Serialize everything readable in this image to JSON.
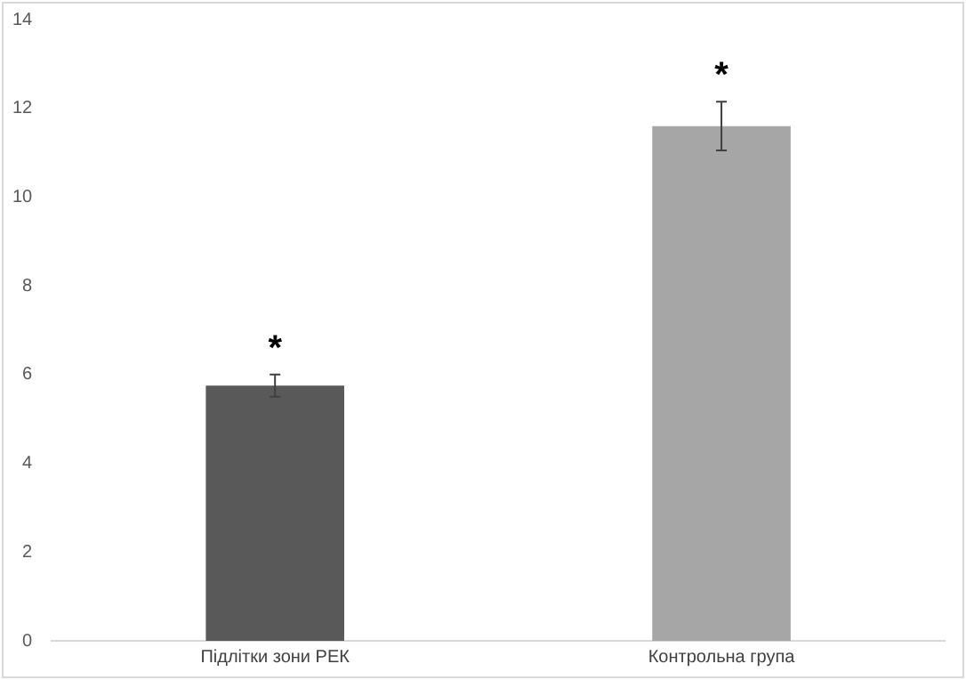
{
  "chart_data": {
    "type": "bar",
    "categories": [
      "Підлітки зони РЕК",
      "Контрольна група"
    ],
    "values": [
      5.75,
      11.6
    ],
    "colors": [
      "#595959",
      "#a6a6a6"
    ],
    "errors": [
      0.25,
      0.55
    ],
    "ylim": [
      0,
      14
    ],
    "yticks": [
      0,
      2,
      4,
      6,
      8,
      10,
      12,
      14
    ],
    "grid": false,
    "legend": false,
    "annotations": [
      "*",
      "*"
    ]
  }
}
